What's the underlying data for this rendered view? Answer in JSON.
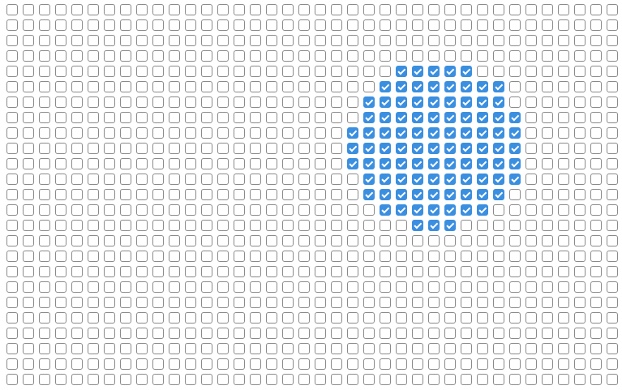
{
  "grid": {
    "columns": 38,
    "rows": 25,
    "accent_color": "#3b8fe0",
    "checkbox_icon": "checkmark-icon",
    "checked": [
      {
        "row": 4,
        "cols": [
          24,
          25,
          26,
          27,
          28
        ]
      },
      {
        "row": 5,
        "cols": [
          23,
          24,
          25,
          26,
          27,
          28,
          29,
          30
        ]
      },
      {
        "row": 6,
        "cols": [
          22,
          23,
          24,
          25,
          26,
          27,
          28,
          29,
          30
        ]
      },
      {
        "row": 7,
        "cols": [
          22,
          23,
          24,
          25,
          26,
          27,
          28,
          29,
          30,
          31
        ]
      },
      {
        "row": 8,
        "cols": [
          21,
          22,
          23,
          24,
          25,
          26,
          27,
          28,
          29,
          30,
          31
        ]
      },
      {
        "row": 9,
        "cols": [
          21,
          22,
          23,
          24,
          25,
          26,
          27,
          28,
          29,
          30,
          31
        ]
      },
      {
        "row": 10,
        "cols": [
          21,
          22,
          23,
          24,
          25,
          26,
          27,
          28,
          29,
          30,
          31
        ]
      },
      {
        "row": 11,
        "cols": [
          22,
          23,
          24,
          25,
          26,
          27,
          28,
          29,
          30,
          31
        ]
      },
      {
        "row": 12,
        "cols": [
          22,
          23,
          24,
          25,
          26,
          27,
          28,
          29,
          30
        ]
      },
      {
        "row": 13,
        "cols": [
          23,
          24,
          25,
          26,
          27,
          28,
          29
        ]
      },
      {
        "row": 14,
        "cols": [
          25,
          26,
          27
        ]
      }
    ]
  }
}
